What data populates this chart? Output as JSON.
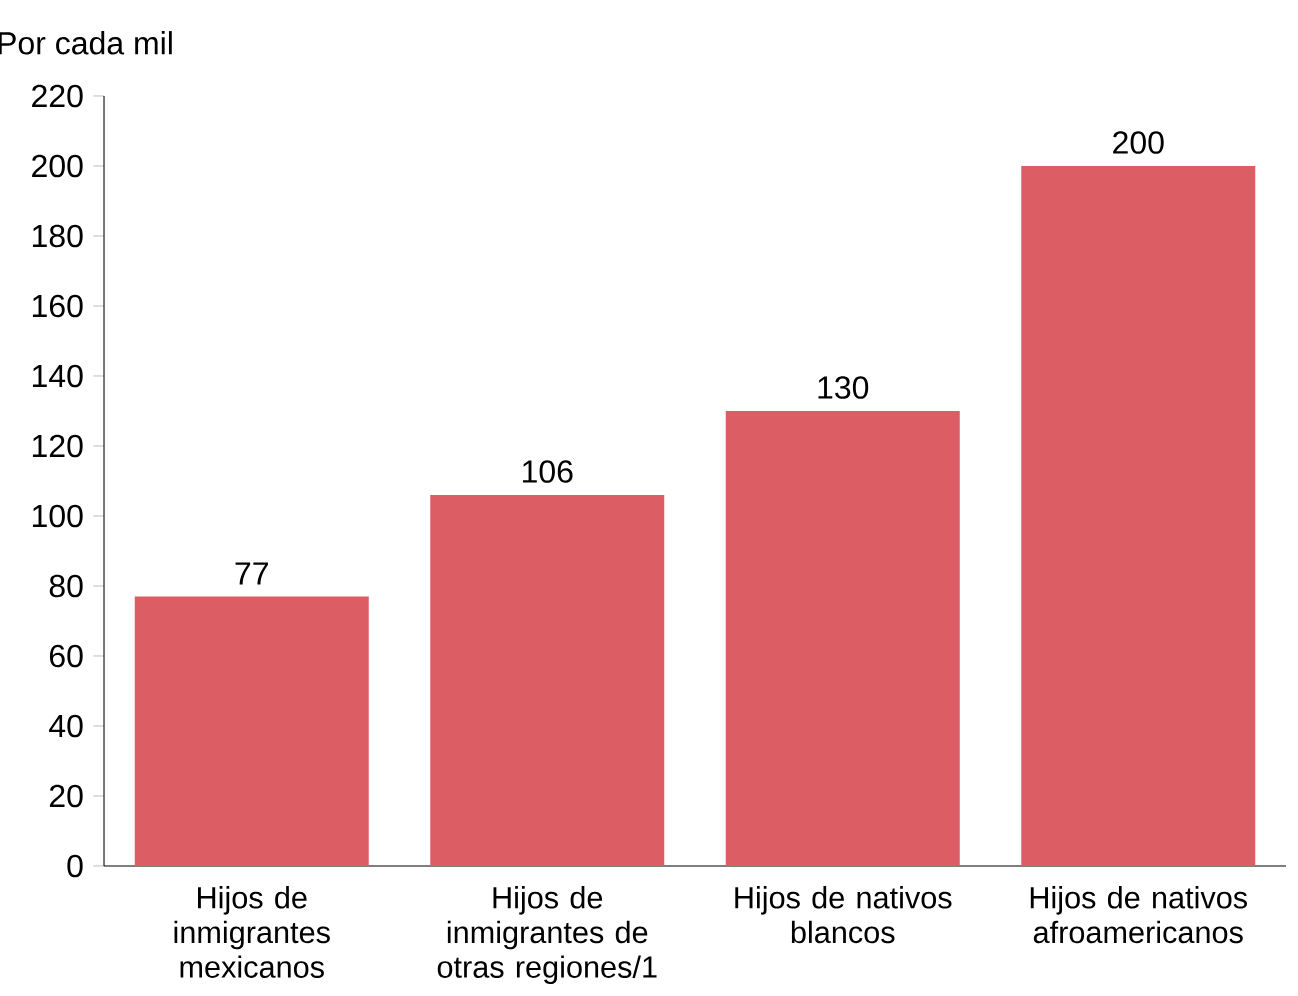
{
  "chart_data": {
    "type": "bar",
    "ylabel": "Por cada mil",
    "categories": [
      "Hijos de inmigrantes mexicanos",
      "Hijos de inmigrantes de otras regiones/1",
      "Hijos de nativos blancos",
      "Hijos de nativos afroamericanos"
    ],
    "values": [
      77,
      106,
      130,
      200
    ],
    "color": "#dc5e64",
    "data_labels": true,
    "ylim": [
      0,
      220
    ],
    "yticks": [
      0,
      20,
      40,
      60,
      80,
      100,
      120,
      140,
      160,
      180,
      200,
      220
    ]
  }
}
